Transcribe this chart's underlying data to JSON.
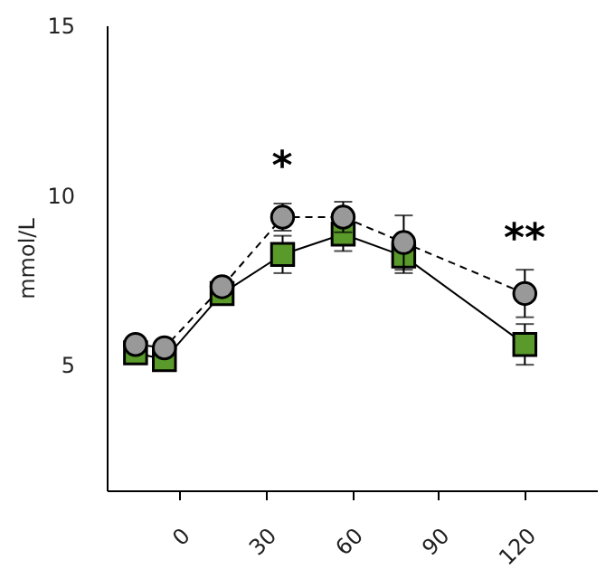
{
  "chart_data": {
    "type": "line",
    "ylabel": "mmol/L",
    "x": [
      -15,
      -5,
      15,
      36,
      57,
      78,
      120
    ],
    "xlim": [
      -25,
      145
    ],
    "xticks": [
      0,
      30,
      60,
      90,
      120
    ],
    "ylim": [
      1.3,
      15
    ],
    "yticks": [
      5,
      10,
      15
    ],
    "grid": false,
    "series": [
      {
        "color": "#5a9a2a",
        "marker": "square",
        "line_style": "solid",
        "values": [
          5.35,
          5.15,
          7.1,
          8.25,
          8.85,
          8.2,
          5.6
        ],
        "errors": [
          null,
          null,
          0.2,
          0.55,
          0.5,
          0.5,
          0.6
        ]
      },
      {
        "color": "#999999",
        "marker": "circle",
        "line_style": "dashed",
        "values": [
          5.6,
          5.5,
          7.3,
          9.35,
          9.35,
          8.6,
          7.1
        ],
        "errors": [
          null,
          null,
          null,
          0.4,
          0.45,
          0.8,
          0.7
        ]
      }
    ],
    "annotations": [
      "*",
      "**"
    ]
  }
}
